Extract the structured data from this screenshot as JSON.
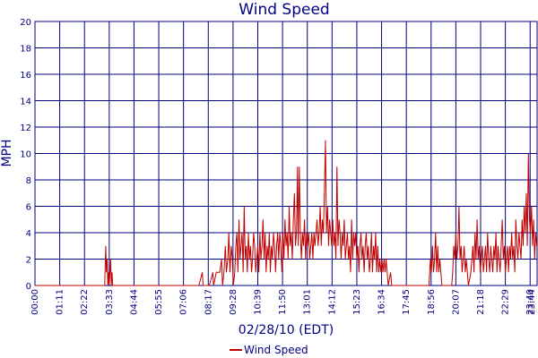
{
  "chart_data": {
    "type": "line",
    "title": "Wind Speed",
    "xlabel": "02/28/10 (EDT)",
    "ylabel": "MPH",
    "xlim": [
      0,
      1440
    ],
    "ylim": [
      0,
      20
    ],
    "y_ticks": [
      0,
      2,
      4,
      6,
      8,
      10,
      12,
      14,
      16,
      18,
      20
    ],
    "x_tick_labels": [
      "00:00",
      "01:11",
      "02:22",
      "03:33",
      "04:44",
      "05:55",
      "07:06",
      "08:17",
      "09:28",
      "10:39",
      "11:50",
      "13:01",
      "14:12",
      "15:23",
      "16:34",
      "17:45",
      "18:56",
      "20:07",
      "21:18",
      "22:29",
      "23:40",
      "23:44"
    ],
    "x_tick_minutes": [
      0,
      71,
      142,
      213,
      284,
      355,
      426,
      497,
      568,
      639,
      710,
      781,
      852,
      923,
      994,
      1065,
      1136,
      1207,
      1278,
      1349,
      1420,
      1424
    ],
    "grid": true,
    "legend_position": "bottom-center",
    "series": [
      {
        "name": "Wind Speed",
        "color": "#c00000",
        "points": [
          [
            0,
            0
          ],
          [
            200,
            0
          ],
          [
            203,
            3
          ],
          [
            205,
            1
          ],
          [
            207,
            2
          ],
          [
            209,
            0
          ],
          [
            211,
            1
          ],
          [
            213,
            0
          ],
          [
            217,
            2
          ],
          [
            219,
            0
          ],
          [
            221,
            1
          ],
          [
            223,
            0
          ],
          [
            470,
            0
          ],
          [
            480,
            1
          ],
          [
            482,
            0
          ],
          [
            500,
            0
          ],
          [
            510,
            1
          ],
          [
            512,
            0
          ],
          [
            520,
            1
          ],
          [
            530,
            1
          ],
          [
            535,
            2
          ],
          [
            538,
            0
          ],
          [
            542,
            1
          ],
          [
            546,
            3
          ],
          [
            549,
            1
          ],
          [
            553,
            2
          ],
          [
            556,
            4
          ],
          [
            559,
            1
          ],
          [
            563,
            3
          ],
          [
            566,
            2
          ],
          [
            569,
            0
          ],
          [
            573,
            1
          ],
          [
            576,
            3
          ],
          [
            579,
            4
          ],
          [
            582,
            1
          ],
          [
            585,
            5
          ],
          [
            588,
            2
          ],
          [
            591,
            3
          ],
          [
            594,
            4
          ],
          [
            597,
            1
          ],
          [
            600,
            6
          ],
          [
            603,
            2
          ],
          [
            606,
            3
          ],
          [
            609,
            1
          ],
          [
            612,
            4
          ],
          [
            615,
            2
          ],
          [
            618,
            3
          ],
          [
            621,
            1
          ],
          [
            624,
            2
          ],
          [
            627,
            4
          ],
          [
            630,
            3
          ],
          [
            633,
            1
          ],
          [
            636,
            2
          ],
          [
            639,
            3
          ],
          [
            642,
            1
          ],
          [
            645,
            4
          ],
          [
            648,
            2
          ],
          [
            651,
            3
          ],
          [
            654,
            5
          ],
          [
            657,
            2
          ],
          [
            660,
            4
          ],
          [
            663,
            1
          ],
          [
            666,
            3
          ],
          [
            669,
            2
          ],
          [
            672,
            4
          ],
          [
            675,
            1
          ],
          [
            678,
            3
          ],
          [
            681,
            2
          ],
          [
            684,
            4
          ],
          [
            687,
            3
          ],
          [
            690,
            1
          ],
          [
            693,
            3
          ],
          [
            696,
            4
          ],
          [
            699,
            2
          ],
          [
            702,
            4
          ],
          [
            705,
            3
          ],
          [
            708,
            1
          ],
          [
            711,
            4
          ],
          [
            714,
            2
          ],
          [
            717,
            5
          ],
          [
            720,
            3
          ],
          [
            723,
            4
          ],
          [
            726,
            2
          ],
          [
            729,
            6
          ],
          [
            732,
            3
          ],
          [
            735,
            4
          ],
          [
            738,
            2
          ],
          [
            741,
            5
          ],
          [
            744,
            7
          ],
          [
            747,
            3
          ],
          [
            750,
            4
          ],
          [
            753,
            9
          ],
          [
            755,
            3
          ],
          [
            758,
            9
          ],
          [
            761,
            4
          ],
          [
            764,
            2
          ],
          [
            767,
            4
          ],
          [
            770,
            3
          ],
          [
            773,
            5
          ],
          [
            776,
            2
          ],
          [
            779,
            4
          ],
          [
            782,
            3
          ],
          [
            785,
            4
          ],
          [
            788,
            2
          ],
          [
            791,
            3
          ],
          [
            794,
            4
          ],
          [
            797,
            2
          ],
          [
            800,
            4
          ],
          [
            803,
            3
          ],
          [
            806,
            4
          ],
          [
            809,
            5
          ],
          [
            812,
            3
          ],
          [
            815,
            4
          ],
          [
            818,
            6
          ],
          [
            821,
            3
          ],
          [
            824,
            5
          ],
          [
            827,
            4
          ],
          [
            830,
            7
          ],
          [
            833,
            11
          ],
          [
            836,
            4
          ],
          [
            839,
            6
          ],
          [
            842,
            3
          ],
          [
            845,
            5
          ],
          [
            848,
            4
          ],
          [
            851,
            3
          ],
          [
            854,
            5
          ],
          [
            857,
            3
          ],
          [
            860,
            4
          ],
          [
            863,
            2
          ],
          [
            866,
            9
          ],
          [
            869,
            3
          ],
          [
            872,
            5
          ],
          [
            875,
            4
          ],
          [
            878,
            2
          ],
          [
            881,
            4
          ],
          [
            884,
            3
          ],
          [
            887,
            5
          ],
          [
            890,
            2
          ],
          [
            893,
            3
          ],
          [
            896,
            4
          ],
          [
            899,
            2
          ],
          [
            902,
            3
          ],
          [
            905,
            1
          ],
          [
            908,
            5
          ],
          [
            911,
            2
          ],
          [
            914,
            4
          ],
          [
            917,
            3
          ],
          [
            920,
            4
          ],
          [
            923,
            2
          ],
          [
            926,
            3
          ],
          [
            929,
            1
          ],
          [
            932,
            3
          ],
          [
            935,
            4
          ],
          [
            938,
            2
          ],
          [
            941,
            3
          ],
          [
            944,
            1
          ],
          [
            947,
            3
          ],
          [
            950,
            4
          ],
          [
            953,
            2
          ],
          [
            956,
            3
          ],
          [
            959,
            1
          ],
          [
            962,
            2
          ],
          [
            965,
            4
          ],
          [
            968,
            1
          ],
          [
            971,
            3
          ],
          [
            974,
            2
          ],
          [
            977,
            4
          ],
          [
            980,
            1
          ],
          [
            983,
            3
          ],
          [
            986,
            1
          ],
          [
            989,
            2
          ],
          [
            992,
            1
          ],
          [
            995,
            2
          ],
          [
            998,
            1
          ],
          [
            1001,
            2
          ],
          [
            1004,
            1
          ],
          [
            1007,
            2
          ],
          [
            1010,
            1
          ],
          [
            1013,
            0
          ],
          [
            1020,
            1
          ],
          [
            1023,
            0
          ],
          [
            1130,
            0
          ],
          [
            1134,
            2
          ],
          [
            1137,
            1
          ],
          [
            1140,
            3
          ],
          [
            1143,
            1
          ],
          [
            1146,
            2
          ],
          [
            1149,
            4
          ],
          [
            1152,
            1
          ],
          [
            1155,
            3
          ],
          [
            1158,
            1
          ],
          [
            1161,
            2
          ],
          [
            1164,
            1
          ],
          [
            1167,
            0
          ],
          [
            1195,
            0
          ],
          [
            1198,
            1
          ],
          [
            1201,
            3
          ],
          [
            1204,
            2
          ],
          [
            1207,
            4
          ],
          [
            1210,
            2
          ],
          [
            1213,
            3
          ],
          [
            1216,
            6
          ],
          [
            1219,
            2
          ],
          [
            1222,
            3
          ],
          [
            1225,
            1
          ],
          [
            1228,
            2
          ],
          [
            1231,
            3
          ],
          [
            1234,
            1
          ],
          [
            1237,
            2
          ],
          [
            1240,
            1
          ],
          [
            1243,
            0
          ],
          [
            1250,
            1
          ],
          [
            1253,
            2
          ],
          [
            1256,
            3
          ],
          [
            1259,
            1
          ],
          [
            1262,
            4
          ],
          [
            1265,
            2
          ],
          [
            1268,
            5
          ],
          [
            1271,
            2
          ],
          [
            1274,
            3
          ],
          [
            1277,
            1
          ],
          [
            1280,
            2
          ],
          [
            1283,
            3
          ],
          [
            1286,
            1
          ],
          [
            1289,
            2
          ],
          [
            1292,
            3
          ],
          [
            1295,
            1
          ],
          [
            1298,
            4
          ],
          [
            1301,
            2
          ],
          [
            1304,
            1
          ],
          [
            1307,
            3
          ],
          [
            1310,
            2
          ],
          [
            1313,
            1
          ],
          [
            1316,
            3
          ],
          [
            1319,
            2
          ],
          [
            1322,
            4
          ],
          [
            1325,
            1
          ],
          [
            1328,
            3
          ],
          [
            1331,
            2
          ],
          [
            1334,
            1
          ],
          [
            1337,
            3
          ],
          [
            1340,
            5
          ],
          [
            1343,
            2
          ],
          [
            1346,
            3
          ],
          [
            1349,
            1
          ],
          [
            1352,
            2
          ],
          [
            1355,
            3
          ],
          [
            1358,
            1
          ],
          [
            1361,
            3
          ],
          [
            1364,
            2
          ],
          [
            1367,
            4
          ],
          [
            1370,
            2
          ],
          [
            1373,
            3
          ],
          [
            1376,
            1
          ],
          [
            1379,
            5
          ],
          [
            1382,
            3
          ],
          [
            1385,
            2
          ],
          [
            1388,
            4
          ],
          [
            1391,
            3
          ],
          [
            1394,
            2
          ],
          [
            1397,
            5
          ],
          [
            1400,
            3
          ],
          [
            1403,
            6
          ],
          [
            1406,
            4
          ],
          [
            1409,
            7
          ],
          [
            1412,
            3
          ],
          [
            1415,
            10
          ],
          [
            1418,
            5
          ],
          [
            1421,
            4
          ],
          [
            1424,
            6
          ],
          [
            1427,
            3
          ],
          [
            1430,
            5
          ],
          [
            1433,
            2
          ],
          [
            1436,
            4
          ],
          [
            1439,
            3
          ]
        ]
      }
    ]
  }
}
